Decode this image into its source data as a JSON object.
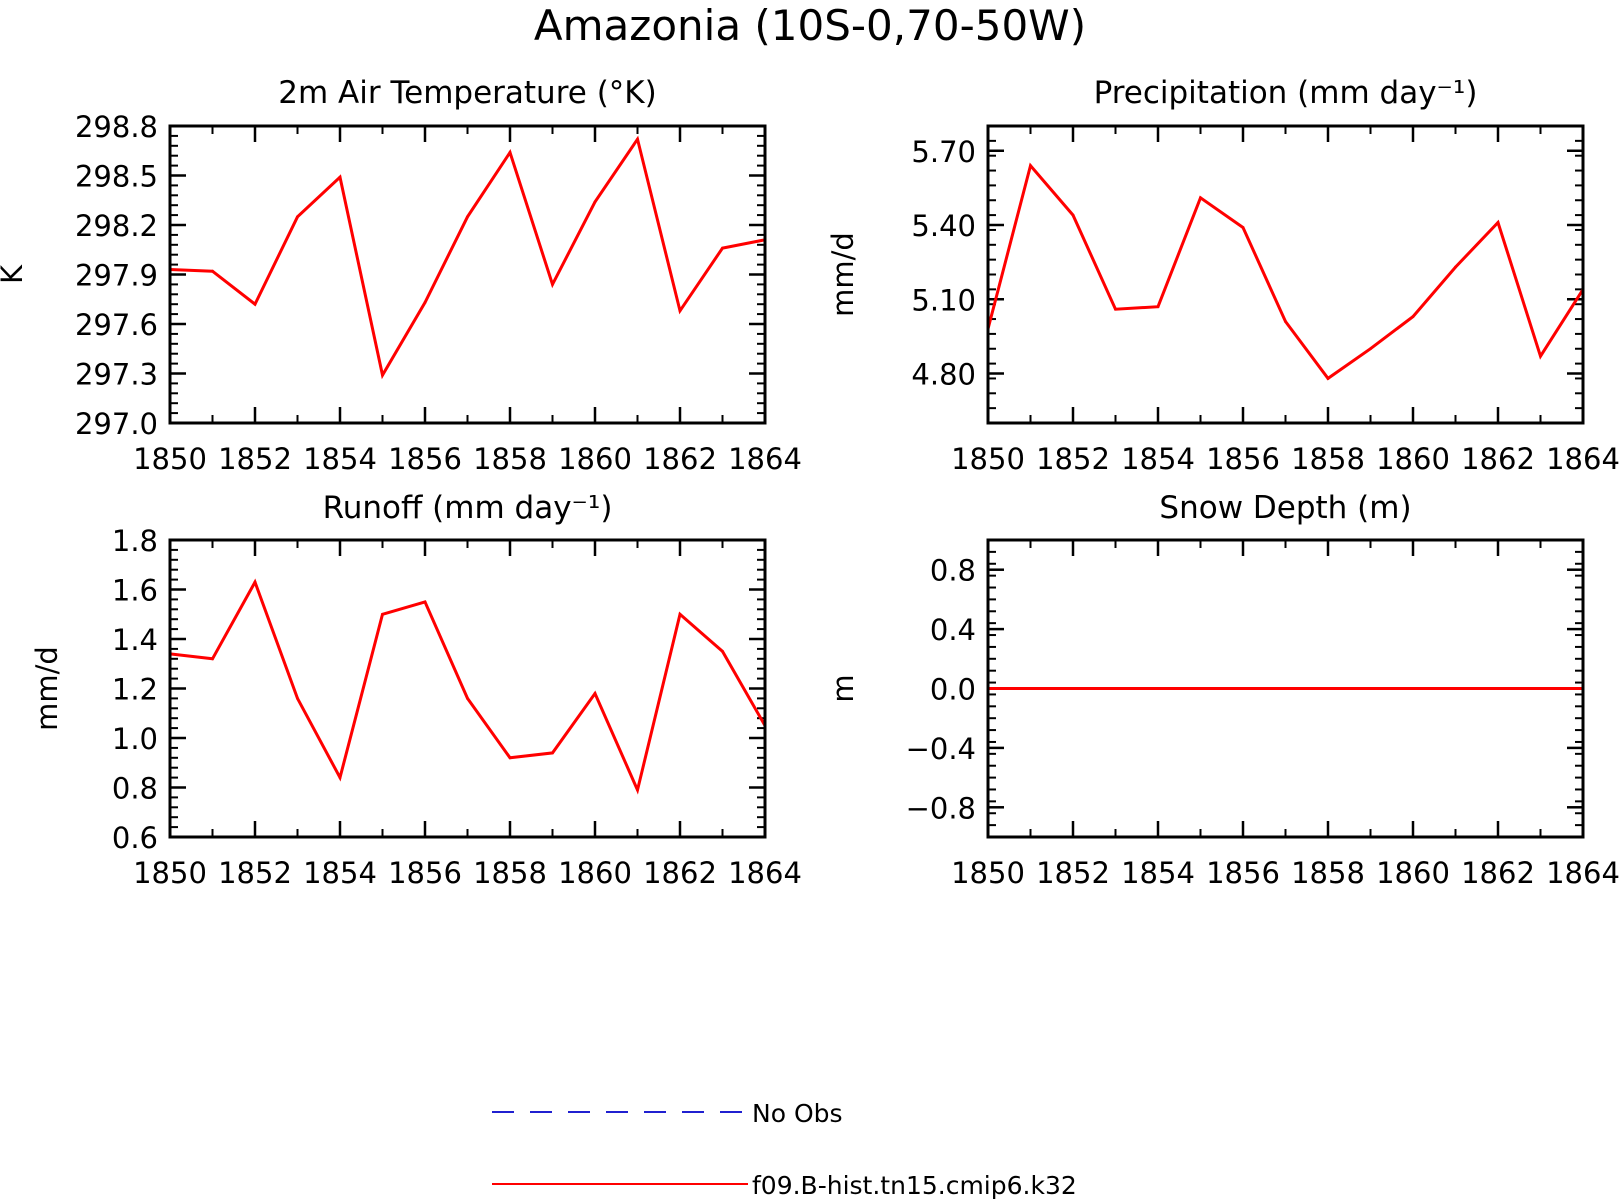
{
  "figure": {
    "title": "Amazonia (10S-0,70-50W)"
  },
  "legend": {
    "entries": [
      {
        "label": "No Obs",
        "color": "#2020d0",
        "style": "dashed"
      },
      {
        "label": "f09.B-hist.tn15.cmip6.k32",
        "color": "#ff0000",
        "style": "solid"
      }
    ]
  },
  "chart_data": [
    {
      "type": "line",
      "title": "2m Air Temperature (°K)",
      "ylabel": "K",
      "xlim": [
        1850,
        1864
      ],
      "ylim": [
        297.0,
        298.8
      ],
      "xticks": [
        "1850",
        "1852",
        "1854",
        "1856",
        "1858",
        "1860",
        "1862",
        "1864"
      ],
      "yticks": [
        "297.0",
        "297.3",
        "297.6",
        "297.9",
        "298.2",
        "298.5",
        "298.8"
      ],
      "x": [
        1850,
        1851,
        1852,
        1853,
        1854,
        1855,
        1856,
        1857,
        1858,
        1859,
        1860,
        1861,
        1862,
        1863,
        1864
      ],
      "series": [
        {
          "name": "f09.B-hist.tn15.cmip6.k32",
          "color": "#ff0000",
          "values": [
            297.93,
            297.92,
            297.72,
            298.25,
            298.49,
            297.29,
            297.73,
            298.25,
            298.64,
            297.84,
            298.34,
            298.72,
            297.68,
            298.06,
            298.11
          ]
        }
      ]
    },
    {
      "type": "line",
      "title": "Precipitation (mm day⁻¹)",
      "ylabel": "mm/d",
      "xlim": [
        1850,
        1864
      ],
      "ylim": [
        4.6,
        5.8
      ],
      "xticks": [
        "1850",
        "1852",
        "1854",
        "1856",
        "1858",
        "1860",
        "1862",
        "1864"
      ],
      "yticks": [
        "4.80",
        "5.10",
        "5.40",
        "5.70"
      ],
      "x": [
        1850,
        1851,
        1852,
        1853,
        1854,
        1855,
        1856,
        1857,
        1858,
        1859,
        1860,
        1861,
        1862,
        1863,
        1864
      ],
      "series": [
        {
          "name": "f09.B-hist.tn15.cmip6.k32",
          "color": "#ff0000",
          "values": [
            4.98,
            5.64,
            5.44,
            5.06,
            5.07,
            5.51,
            5.39,
            5.01,
            4.78,
            4.9,
            5.03,
            5.23,
            5.41,
            4.87,
            5.14
          ]
        }
      ]
    },
    {
      "type": "line",
      "title": "Runoff (mm day⁻¹)",
      "ylabel": "mm/d",
      "xlim": [
        1850,
        1864
      ],
      "ylim": [
        0.6,
        1.8
      ],
      "xticks": [
        "1850",
        "1852",
        "1854",
        "1856",
        "1858",
        "1860",
        "1862",
        "1864"
      ],
      "yticks": [
        "0.6",
        "0.8",
        "1.0",
        "1.2",
        "1.4",
        "1.6",
        "1.8"
      ],
      "x": [
        1850,
        1851,
        1852,
        1853,
        1854,
        1855,
        1856,
        1857,
        1858,
        1859,
        1860,
        1861,
        1862,
        1863,
        1864
      ],
      "series": [
        {
          "name": "f09.B-hist.tn15.cmip6.k32",
          "color": "#ff0000",
          "values": [
            1.34,
            1.32,
            1.63,
            1.16,
            0.84,
            1.5,
            1.55,
            1.16,
            0.92,
            0.94,
            1.18,
            0.79,
            1.5,
            1.35,
            1.05
          ]
        }
      ]
    },
    {
      "type": "line",
      "title": "Snow Depth (m)",
      "ylabel": "m",
      "xlim": [
        1850,
        1864
      ],
      "ylim": [
        -1.0,
        1.0
      ],
      "xticks": [
        "1850",
        "1852",
        "1854",
        "1856",
        "1858",
        "1860",
        "1862",
        "1864"
      ],
      "yticks": [
        "−0.8",
        "−0.4",
        "0.0",
        "0.4",
        "0.8"
      ],
      "x": [
        1850,
        1851,
        1852,
        1853,
        1854,
        1855,
        1856,
        1857,
        1858,
        1859,
        1860,
        1861,
        1862,
        1863,
        1864
      ],
      "series": [
        {
          "name": "f09.B-hist.tn15.cmip6.k32",
          "color": "#ff0000",
          "values": [
            0,
            0,
            0,
            0,
            0,
            0,
            0,
            0,
            0,
            0,
            0,
            0,
            0,
            0,
            0
          ]
        }
      ]
    }
  ]
}
